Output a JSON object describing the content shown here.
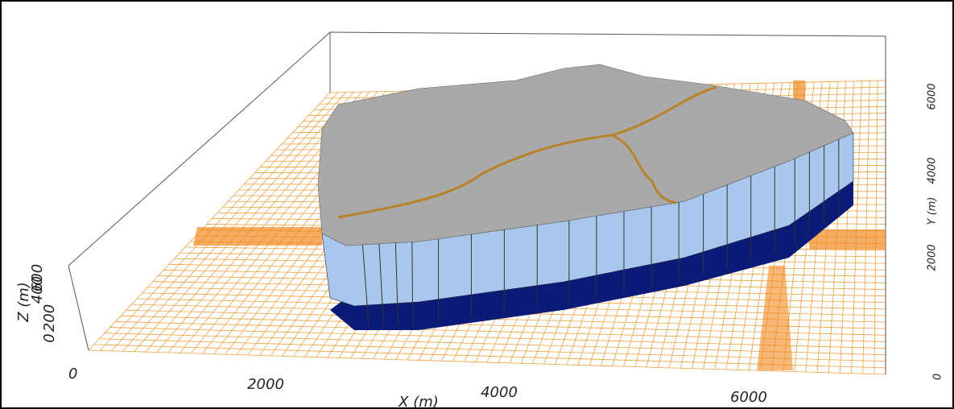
{
  "axes": {
    "x": {
      "label": "X (m)",
      "ticks": [
        "0",
        "2000",
        "4000",
        "6000"
      ]
    },
    "y": {
      "label": "Y (m)",
      "ticks": [
        "0",
        "2000",
        "4000",
        "6000"
      ]
    },
    "z": {
      "label": "Z (m)",
      "ticks": [
        "0",
        "200",
        "400",
        "600"
      ]
    }
  }
}
